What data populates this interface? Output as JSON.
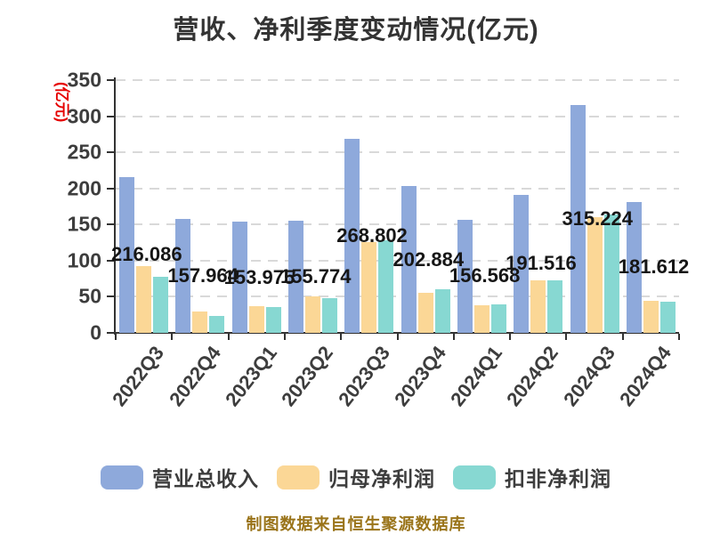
{
  "chart_data": {
    "type": "bar",
    "title": "营收、净利季度变动情况(亿元)",
    "y_axis_title": "(亿元)",
    "footer": "制图数据来自恒生聚源数据库",
    "ylim": [
      0,
      350
    ],
    "ytick_step": 50,
    "grid": "horizontal-dashed",
    "legend_position": "bottom",
    "categories": [
      "2022Q3",
      "2022Q4",
      "2023Q1",
      "2023Q2",
      "2023Q3",
      "2023Q4",
      "2024Q1",
      "2024Q2",
      "2024Q3",
      "2024Q4"
    ],
    "series": [
      {
        "name": "营业总收入",
        "color": "#8EA9DB",
        "values": [
          216.086,
          157.964,
          153.975,
          155.774,
          268.802,
          202.884,
          156.568,
          191.516,
          315.224,
          181.612
        ]
      },
      {
        "name": "归母净利润",
        "color": "#FBD796",
        "values": [
          93,
          30,
          37,
          51,
          126,
          56,
          38,
          73,
          160,
          44
        ]
      },
      {
        "name": "扣非净利润",
        "color": "#87D8D2",
        "values": [
          78,
          23,
          36,
          48,
          128,
          61,
          40,
          73,
          164,
          43
        ]
      }
    ],
    "bar_labels": [
      "216.086",
      "157.964",
      "153.975",
      "155.774",
      "268.802",
      "202.884",
      "156.568",
      "191.516",
      "315.224",
      "181.612"
    ]
  },
  "colors": {
    "title": "#333333",
    "axis": "#333333",
    "tick_label": "#3D3D3D",
    "bar_label": "#161616",
    "grid": "#D9D9D9",
    "y_axis_title": "#E60000",
    "footer": "#9A741A",
    "background": "#FFFFFF"
  }
}
